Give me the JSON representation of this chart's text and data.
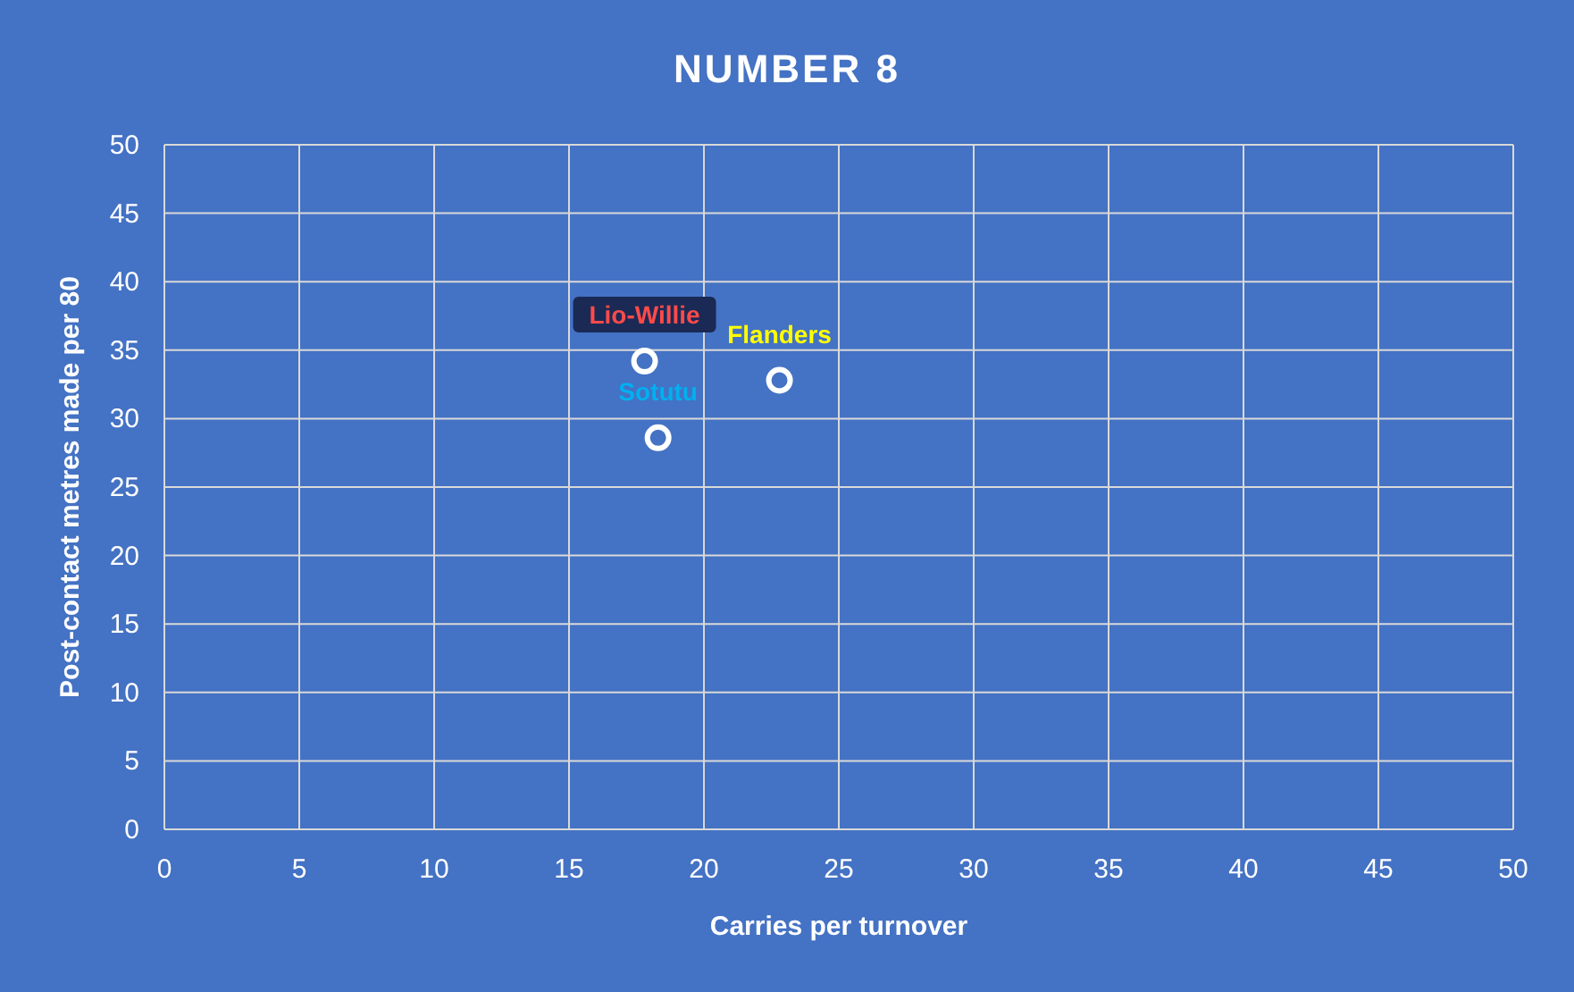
{
  "chart_data": {
    "type": "scatter",
    "title": "NUMBER 8",
    "xlabel": "Carries per turnover",
    "ylabel": "Post-contact metres made per 80",
    "x": [
      17.8,
      22.8,
      18.3
    ],
    "values": [
      34.2,
      32.8,
      28.6
    ],
    "color": "#ffffff",
    "marker": "circle",
    "grid": true,
    "xlim": [
      0,
      50
    ],
    "xticks": [
      0,
      5,
      10,
      15,
      20,
      25,
      30,
      35,
      40,
      45,
      50
    ],
    "ylim": [
      0,
      50
    ],
    "yticks": [
      0,
      5,
      10,
      15,
      20,
      25,
      30,
      35,
      40,
      45,
      50
    ],
    "annotations": [
      {
        "text": "Lio-Willie",
        "x": 17.8,
        "y": 34.2
      },
      {
        "text": "Flanders",
        "x": 22.8,
        "y": 32.8
      },
      {
        "text": "Sotutu",
        "x": 18.3,
        "y": 28.6
      }
    ]
  }
}
